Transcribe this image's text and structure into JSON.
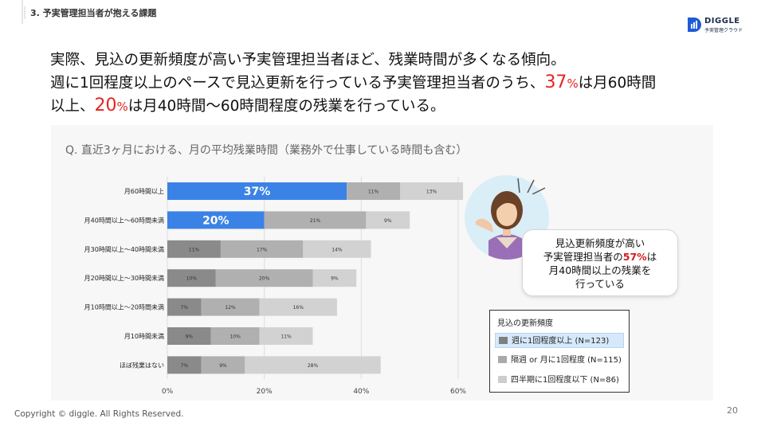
{
  "section": {
    "label": "3. 予実管理担当者が抱える課題"
  },
  "logo": {
    "name": "DIGGLE",
    "sub": "予実管理クラウド"
  },
  "headline": {
    "line1": "実際、見込の更新頻度が高い予実管理担当者ほど、残業時間が多くなる傾向。",
    "line2_a": "週に1回程度以上のペースで見込更新を行っている予実管理担当者のうち、",
    "line2_num": "37",
    "line2_pct": "%",
    "line2_b": "は月60時間",
    "line3_a": "以上、",
    "line3_num": "20",
    "line3_pct": "%",
    "line3_b": "は月40時間〜60時間程度の残業を行っている。"
  },
  "question": "Q. 直近3ヶ月における、月の平均残業時間（業務外で仕事している時間も含む）",
  "speech": {
    "line1": "見込更新頻度が高い",
    "line2_a": "予実管理担当者の",
    "line2_num": "57%",
    "line2_b": "は",
    "line3": "月40時間以上の残業を",
    "line4": "行っている"
  },
  "legend": {
    "title": "見込の更新頻度",
    "items": [
      {
        "label": "週に1回程度以上 (N=123)",
        "color": "#7f7f7f",
        "highlight": true
      },
      {
        "label": "隔週 or 月に1回程度 (N=115)",
        "color": "#a9a9a9",
        "highlight": false
      },
      {
        "label": "四半期に1回程度以下 (N=86)",
        "color": "#cdcdcd",
        "highlight": false
      }
    ]
  },
  "chart_data": {
    "type": "bar",
    "orientation": "horizontal",
    "stacked": true,
    "categories": [
      "月60時間以上",
      "月40時間以上〜60時間未満",
      "月30時間以上〜40時間未満",
      "月20時間以上〜30時間未満",
      "月10時間以上〜20時間未満",
      "月10時間未満",
      "ほぼ残業はない"
    ],
    "series": [
      {
        "name": "週に1回程度以上 (N=123)",
        "values": [
          37,
          20,
          11,
          10,
          7,
          9,
          7
        ],
        "labels": [
          "37%",
          "20%",
          "11%",
          "10%",
          "7%",
          "9%",
          "7%"
        ]
      },
      {
        "name": "隔週 or 月に1回程度 (N=115)",
        "values": [
          11,
          21,
          17,
          20,
          12,
          10,
          9
        ],
        "labels": [
          "11%",
          "21%",
          "17%",
          "20%",
          "12%",
          "10%",
          "9%"
        ]
      },
      {
        "name": "四半期に1回程度以下 (N=86)",
        "values": [
          13,
          9,
          14,
          9,
          16,
          11,
          28
        ],
        "labels": [
          "13%",
          "9%",
          "14%",
          "9%",
          "16%",
          "11%",
          "28%"
        ]
      }
    ],
    "highlight": [
      true,
      true,
      false,
      false,
      false,
      false,
      false
    ],
    "highlight_color": "#3b82e6",
    "colors": [
      "#8a8a8a",
      "#b0b0b0",
      "#d2d2d2"
    ],
    "xlim": [
      0,
      60
    ],
    "xticks": [
      "0%",
      "20%",
      "40%",
      "60%"
    ],
    "grid": true
  },
  "footer": "Copyright © diggle. All Rights Reserved.",
  "page_number": "20"
}
